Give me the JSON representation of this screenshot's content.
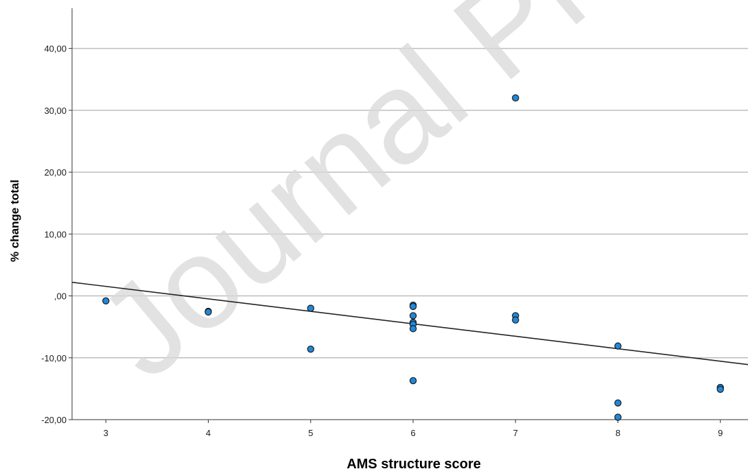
{
  "watermark_text": "Journal Pre-proof",
  "chart_data": {
    "type": "scatter",
    "xlabel": "AMS structure score",
    "ylabel": "% change total",
    "x_ticks": [
      3,
      4,
      5,
      6,
      7,
      8,
      9
    ],
    "x_tick_labels": [
      "3",
      "4",
      "5",
      "6",
      "7",
      "8",
      "9"
    ],
    "y_ticks": [
      -20,
      -10,
      0,
      10,
      20,
      30,
      40
    ],
    "y_tick_labels": [
      "-20,00",
      "-10,00",
      ",00",
      "10,00",
      "20,00",
      "30,00",
      "40,00"
    ],
    "xlim": [
      2.67,
      9.27
    ],
    "ylim": [
      -20,
      46.5
    ],
    "grid": "horizontal",
    "point_color": "#1f88d9",
    "point_edge_color": "#1a1a1a",
    "fit_line": {
      "x": [
        2.67,
        9.27
      ],
      "y": [
        2.2,
        -11.1
      ]
    },
    "points": [
      {
        "x": 3,
        "y": -0.8
      },
      {
        "x": 4,
        "y": -2.5
      },
      {
        "x": 4,
        "y": -2.6
      },
      {
        "x": 5,
        "y": -2.0
      },
      {
        "x": 5,
        "y": -8.6
      },
      {
        "x": 6,
        "y": -1.5
      },
      {
        "x": 6,
        "y": -1.7
      },
      {
        "x": 6,
        "y": -3.2
      },
      {
        "x": 6,
        "y": -4.3
      },
      {
        "x": 6,
        "y": -4.6
      },
      {
        "x": 6,
        "y": -5.3
      },
      {
        "x": 6,
        "y": -13.7
      },
      {
        "x": 7,
        "y": 32.0
      },
      {
        "x": 7,
        "y": -3.2
      },
      {
        "x": 7,
        "y": -3.9
      },
      {
        "x": 8,
        "y": -8.1
      },
      {
        "x": 8,
        "y": -17.3
      },
      {
        "x": 8,
        "y": -19.6
      },
      {
        "x": 9,
        "y": -14.8
      },
      {
        "x": 9,
        "y": -15.1
      }
    ]
  }
}
